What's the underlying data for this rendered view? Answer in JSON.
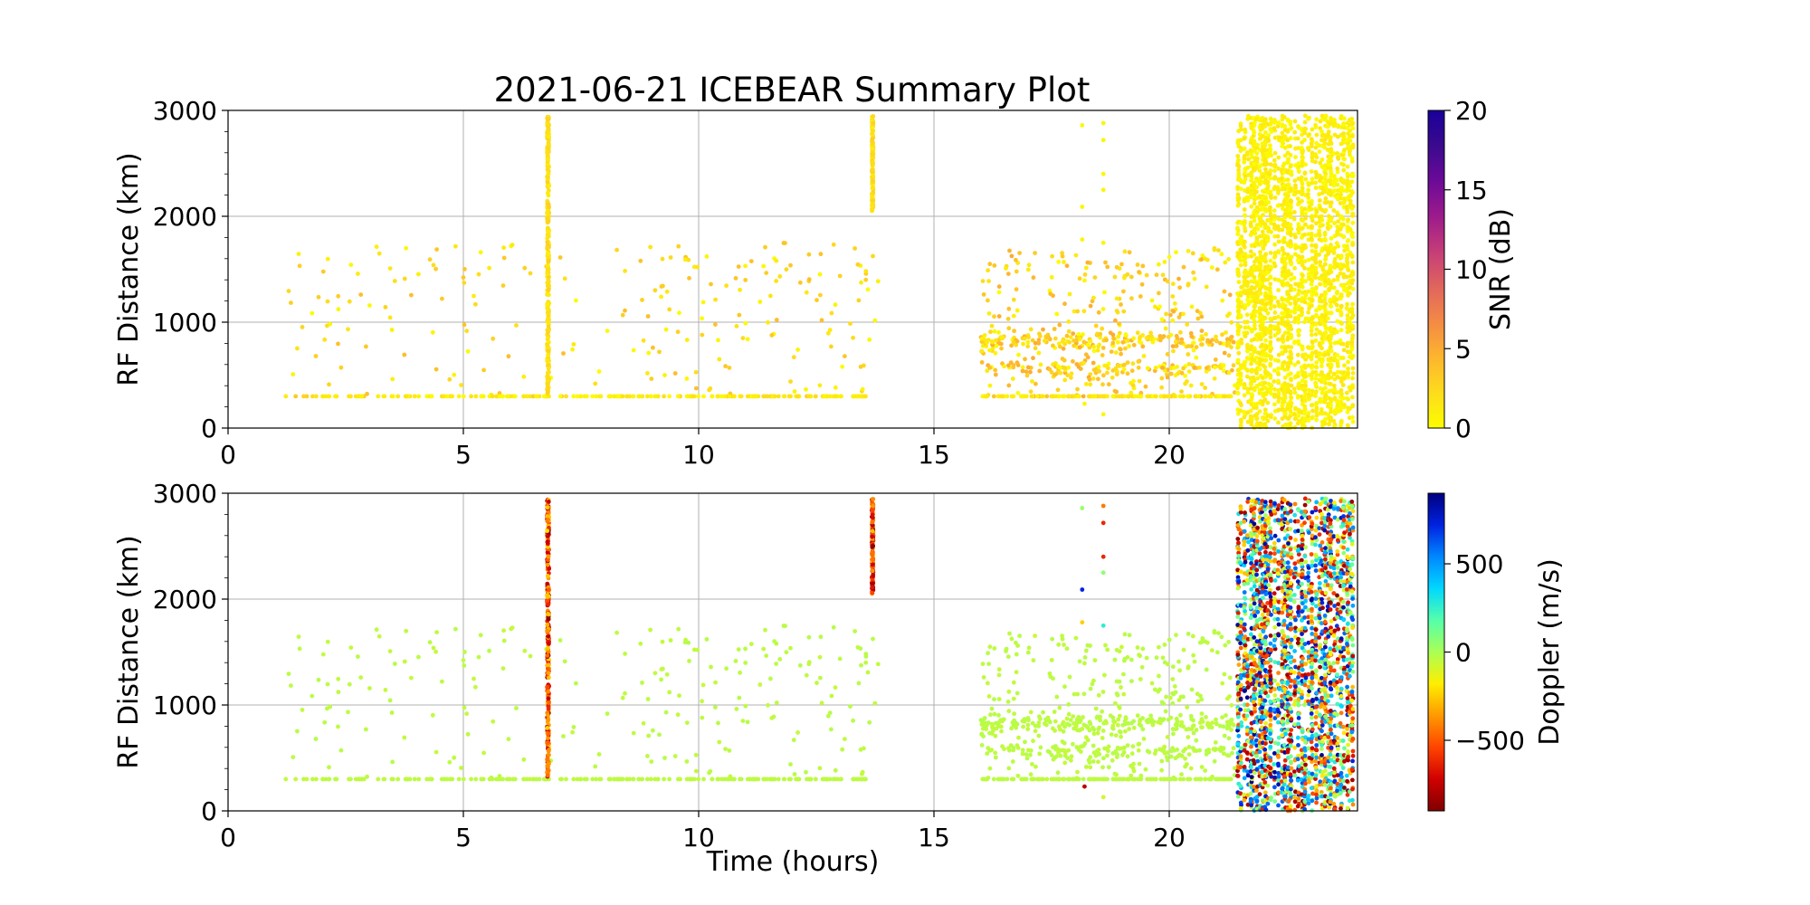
{
  "title": "2021-06-21 ICEBEAR Summary Plot",
  "colors": {
    "grid": "#b0b0b0",
    "axis": "#000000",
    "snr_colormap": [
      "#fcfd00",
      "#fddc1c",
      "#fdb52e",
      "#f48a45",
      "#e0655d",
      "#c53d78",
      "#9c1b8c",
      "#6c0a98",
      "#3a0a8f",
      "#19009a"
    ],
    "doppler_colormap": [
      "#800000",
      "#d00000",
      "#ff4400",
      "#ff9900",
      "#ffee00",
      "#aaff55",
      "#55ffaa",
      "#00d8ff",
      "#0088ff",
      "#0022e0",
      "#00007f"
    ]
  },
  "chart_data": [
    {
      "type": "scatter",
      "panel": "top",
      "title": "2021-06-21 ICEBEAR Summary Plot",
      "xlabel": "",
      "ylabel": "RF Distance (km)",
      "xlim": [
        0,
        24
      ],
      "ylim": [
        0,
        3000
      ],
      "xticks": [
        0,
        5,
        10,
        15,
        20
      ],
      "yticks": [
        0,
        1000,
        2000,
        3000
      ],
      "grid": true,
      "color_variable": "SNR (dB)",
      "colorbar": {
        "label": "SNR (dB)",
        "range": [
          0,
          20
        ],
        "ticks": [
          0,
          5,
          10,
          15,
          20
        ],
        "colormap": "plasma_r"
      },
      "regions": [
        {
          "x_range": [
            1.0,
            13.9
          ],
          "y_range": [
            300,
            1750
          ],
          "density": "sparse",
          "typical_snr": "0-5 dB"
        },
        {
          "x_range": [
            16.0,
            21.4
          ],
          "y_range": [
            300,
            1700
          ],
          "density": "moderate",
          "typical_snr": "0-5 dB"
        },
        {
          "x_range": [
            21.4,
            23.9
          ],
          "y_range": [
            0,
            2950
          ],
          "density": "dense",
          "typical_snr": "0-2 dB"
        },
        {
          "x_range": [
            6.75,
            6.85
          ],
          "y_range": [
            300,
            2950
          ],
          "density": "vertical line",
          "typical_snr": "1-3 dB"
        },
        {
          "x_range": [
            13.65,
            13.75
          ],
          "y_range": [
            2050,
            2950
          ],
          "density": "vertical line",
          "typical_snr": "1-3 dB"
        }
      ]
    },
    {
      "type": "scatter",
      "panel": "bottom",
      "title": "",
      "xlabel": "Time (hours)",
      "ylabel": "RF Distance (km)",
      "xlim": [
        0,
        24
      ],
      "ylim": [
        0,
        3000
      ],
      "xticks": [
        0,
        5,
        10,
        15,
        20
      ],
      "yticks": [
        0,
        1000,
        2000,
        3000
      ],
      "grid": true,
      "color_variable": "Doppler (m/s)",
      "colorbar": {
        "label": "Doppler (m/s)",
        "range": [
          -900,
          900
        ],
        "ticks": [
          -500,
          0,
          500
        ],
        "tick_labels": [
          "−500",
          "0",
          "500"
        ],
        "colormap": "jet_r"
      },
      "regions": [
        {
          "x_range": [
            1.0,
            13.9
          ],
          "y_range": [
            300,
            1750
          ],
          "density": "sparse",
          "typical_doppler": "~ -50 m/s"
        },
        {
          "x_range": [
            16.0,
            21.4
          ],
          "y_range": [
            300,
            1700
          ],
          "density": "moderate",
          "typical_doppler": "~ -50 m/s"
        },
        {
          "x_range": [
            21.4,
            23.9
          ],
          "y_range": [
            0,
            2950
          ],
          "density": "dense",
          "typical_doppler": "-900 to 900 m/s"
        },
        {
          "x_range": [
            6.75,
            6.85
          ],
          "y_range": [
            300,
            2950
          ],
          "density": "vertical line",
          "typical_doppler": "-900 to -100 m/s"
        },
        {
          "x_range": [
            13.65,
            13.75
          ],
          "y_range": [
            1900,
            2950
          ],
          "density": "vertical line",
          "typical_doppler": "-900 to -100 m/s"
        }
      ]
    }
  ]
}
